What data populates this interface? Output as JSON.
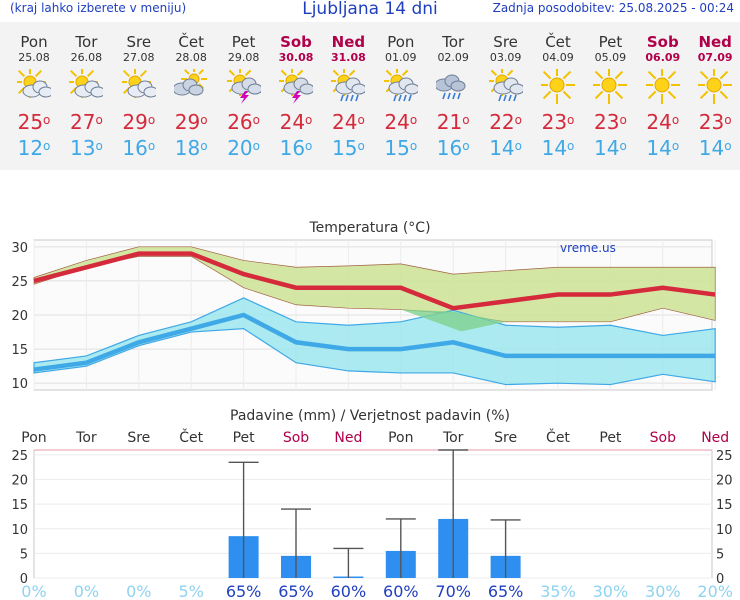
{
  "header": {
    "menu_hint": "(kraj lahko izberete v meniju)",
    "title": "Ljubljana 14 dni",
    "updated": "Zadnja posodobitev: 25.08.2025 - 00:24"
  },
  "days": [
    {
      "name": "Pon",
      "date": "25.08",
      "weekend": false,
      "icon": "sun-cloud-icon",
      "tmax": 25,
      "tmin": 12
    },
    {
      "name": "Tor",
      "date": "26.08",
      "weekend": false,
      "icon": "sun-cloud-icon",
      "tmax": 27,
      "tmin": 13
    },
    {
      "name": "Sre",
      "date": "27.08",
      "weekend": false,
      "icon": "sun-cloud-icon",
      "tmax": 29,
      "tmin": 16
    },
    {
      "name": "Čet",
      "date": "28.08",
      "weekend": false,
      "icon": "cloud-sun-icon",
      "tmax": 29,
      "tmin": 18
    },
    {
      "name": "Pet",
      "date": "29.08",
      "weekend": false,
      "icon": "thunderstorm-icon",
      "tmax": 26,
      "tmin": 20
    },
    {
      "name": "Sob",
      "date": "30.08",
      "weekend": true,
      "icon": "thunderstorm-icon",
      "tmax": 24,
      "tmin": 16
    },
    {
      "name": "Ned",
      "date": "31.08",
      "weekend": true,
      "icon": "sun-rain-icon",
      "tmax": 24,
      "tmin": 15
    },
    {
      "name": "Pon",
      "date": "01.09",
      "weekend": false,
      "icon": "sun-rain-icon",
      "tmax": 24,
      "tmin": 15
    },
    {
      "name": "Tor",
      "date": "02.09",
      "weekend": false,
      "icon": "rain-cloud-icon",
      "tmax": 21,
      "tmin": 16
    },
    {
      "name": "Sre",
      "date": "03.09",
      "weekend": false,
      "icon": "sun-rain-icon",
      "tmax": 22,
      "tmin": 14
    },
    {
      "name": "Čet",
      "date": "04.09",
      "weekend": false,
      "icon": "sun-icon",
      "tmax": 23,
      "tmin": 14
    },
    {
      "name": "Pet",
      "date": "05.09",
      "weekend": false,
      "icon": "sun-icon",
      "tmax": 23,
      "tmin": 14
    },
    {
      "name": "Sob",
      "date": "06.09",
      "weekend": true,
      "icon": "sun-icon",
      "tmax": 24,
      "tmin": 14
    },
    {
      "name": "Ned",
      "date": "07.09",
      "weekend": true,
      "icon": "sun-icon",
      "tmax": 23,
      "tmin": 14
    }
  ],
  "colors": {
    "max_line": "#d42a3c",
    "max_band": "#cfe39a",
    "min_line": "#3fa8e6",
    "min_band": "#9ee6ef",
    "overlap": "#7fd28f",
    "bar": "#2f8ff0",
    "weekend": "#b0004a",
    "prob_high": "#1f3fbf",
    "prob_low": "#8fd3ef"
  },
  "chart_data": [
    {
      "type": "line",
      "title": "Temperatura (°C)",
      "watermark": "vreme.us",
      "ylim": [
        9,
        31
      ],
      "yticks": [
        10,
        15,
        20,
        25,
        30
      ],
      "series": [
        {
          "name": "max",
          "values": [
            25,
            27,
            29,
            29,
            26,
            24,
            24,
            24,
            21,
            22,
            23,
            23,
            24,
            23
          ],
          "band_high": [
            25.5,
            28,
            30,
            30,
            28,
            27,
            27.2,
            27.5,
            26,
            26.5,
            27,
            27,
            27,
            27
          ],
          "band_low": [
            24.5,
            27,
            28.6,
            28.6,
            24,
            21.5,
            21,
            20.8,
            20.2,
            19,
            19,
            19,
            21,
            19.2
          ]
        },
        {
          "name": "min",
          "values": [
            12,
            13,
            16,
            18,
            20,
            16,
            15,
            15,
            16,
            14,
            14,
            14,
            14,
            14
          ],
          "band_high": [
            13,
            14,
            17,
            19,
            22.5,
            19,
            18.5,
            19,
            20.7,
            18.5,
            18.2,
            18.5,
            17,
            18
          ],
          "band_low": [
            11.5,
            12.5,
            15.5,
            17.5,
            18,
            13,
            11.8,
            11.5,
            11.5,
            9.8,
            10,
            9.8,
            11.3,
            10.2
          ]
        }
      ]
    },
    {
      "type": "bar",
      "title": "Padavine (mm) / Verjetnost padavin (%)",
      "categories": [
        "Pon",
        "Tor",
        "Sre",
        "Čet",
        "Pet",
        "Sob",
        "Ned",
        "Pon",
        "Tor",
        "Sre",
        "Čet",
        "Pet",
        "Sob",
        "Ned"
      ],
      "weekend": [
        false,
        false,
        false,
        false,
        false,
        true,
        true,
        false,
        false,
        false,
        false,
        false,
        true,
        true
      ],
      "ylim": [
        0,
        26
      ],
      "yticks": [
        0,
        5,
        10,
        15,
        20,
        25
      ],
      "values": [
        0,
        0,
        0,
        0,
        8.5,
        4.5,
        0.3,
        5.5,
        12,
        4.5,
        0,
        0,
        0,
        0
      ],
      "error_high": [
        0,
        0,
        0,
        0,
        23.5,
        14,
        6,
        12,
        26,
        11.8,
        0,
        0,
        0,
        0
      ],
      "probability": [
        "0%",
        "0%",
        "0%",
        "5%",
        "65%",
        "65%",
        "60%",
        "60%",
        "70%",
        "65%",
        "35%",
        "30%",
        "30%",
        "20%"
      ]
    }
  ]
}
